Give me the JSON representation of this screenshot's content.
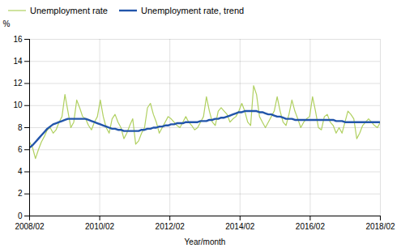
{
  "chart_data": {
    "type": "line",
    "xlabel": "Year/month",
    "ylabel": "%",
    "x": [
      2008.0833,
      2008.1674,
      2008.2514,
      2008.3354,
      2008.4195,
      2008.5035,
      2008.5875,
      2008.6716,
      2008.7556,
      2008.8396,
      2008.9237,
      2009.0077,
      2009.0917,
      2009.1758,
      2009.2598,
      2009.3438,
      2009.4279,
      2009.5119,
      2009.5959,
      2009.68,
      2009.764,
      2009.848,
      2009.9321,
      2010.0161,
      2010.1001,
      2010.1842,
      2010.2682,
      2010.3522,
      2010.4363,
      2010.5203,
      2010.6043,
      2010.6884,
      2010.7724,
      2010.8564,
      2010.9405,
      2011.0245,
      2011.1085,
      2011.1926,
      2011.2766,
      2011.3606,
      2011.4447,
      2011.5287,
      2011.6127,
      2011.6968,
      2011.7808,
      2011.8648,
      2011.9489,
      2012.0329,
      2012.1169,
      2012.201,
      2012.285,
      2012.369,
      2012.4531,
      2012.5371,
      2012.6211,
      2012.7052,
      2012.7892,
      2012.8732,
      2012.9573,
      2013.0413,
      2013.1254,
      2013.2094,
      2013.2934,
      2013.3775,
      2013.4615,
      2013.5455,
      2013.6296,
      2013.7136,
      2013.7976,
      2013.8817,
      2013.9657,
      2014.0497,
      2014.1338,
      2014.2178,
      2014.3018,
      2014.3859,
      2014.4699,
      2014.5539,
      2014.638,
      2014.722,
      2014.806,
      2014.8901,
      2014.9741,
      2015.0581,
      2015.1422,
      2015.2262,
      2015.3102,
      2015.3943,
      2015.4783,
      2015.5623,
      2015.6464,
      2015.7304,
      2015.8144,
      2015.8985,
      2015.9825,
      2016.0665,
      2016.1506,
      2016.2346,
      2016.3186,
      2016.4027,
      2016.4867,
      2016.5707,
      2016.6548,
      2016.7388,
      2016.8228,
      2016.9069,
      2016.9909,
      2017.0749,
      2017.159,
      2017.243,
      2017.327,
      2017.4111,
      2017.4951,
      2017.5791,
      2017.6632,
      2017.7472,
      2017.8312,
      2017.9153,
      2017.9993,
      2018.0833
    ],
    "series": [
      {
        "name": "Unemployment rate",
        "color": "#b0d060",
        "values": [
          6.7,
          6.2,
          5.2,
          6.0,
          6.7,
          7.2,
          7.8,
          8.0,
          7.5,
          7.8,
          8.5,
          9.0,
          11.0,
          9.5,
          8.0,
          8.5,
          10.5,
          9.8,
          9.0,
          8.8,
          8.2,
          7.8,
          8.5,
          9.0,
          10.5,
          9.0,
          8.0,
          7.5,
          8.8,
          9.2,
          8.5,
          8.0,
          7.0,
          7.5,
          8.2,
          8.8,
          6.5,
          6.8,
          7.5,
          8.0,
          9.8,
          10.2,
          9.2,
          8.5,
          7.5,
          8.0,
          8.5,
          9.0,
          8.8,
          8.5,
          8.2,
          8.0,
          8.5,
          9.0,
          8.5,
          8.2,
          7.8,
          8.0,
          8.5,
          9.0,
          10.8,
          9.5,
          8.5,
          8.2,
          9.5,
          9.8,
          9.5,
          9.2,
          8.5,
          8.8,
          9.0,
          9.5,
          10.2,
          9.5,
          8.5,
          8.2,
          11.8,
          11.0,
          9.0,
          8.5,
          8.0,
          8.5,
          9.0,
          9.5,
          10.8,
          9.5,
          8.5,
          8.2,
          9.2,
          10.5,
          9.5,
          8.8,
          8.0,
          8.5,
          8.8,
          9.0,
          10.8,
          9.5,
          8.0,
          7.8,
          9.0,
          9.2,
          8.5,
          8.2,
          7.5,
          8.0,
          7.5,
          8.5,
          9.5,
          9.2,
          8.8,
          7.0,
          7.5,
          8.2,
          8.5,
          8.8,
          8.5,
          8.2,
          8.0,
          8.5
        ]
      },
      {
        "name": "Unemployment rate, trend",
        "color": "#2255aa",
        "values": [
          6.2,
          6.4,
          6.7,
          7.0,
          7.3,
          7.6,
          7.9,
          8.1,
          8.3,
          8.4,
          8.5,
          8.6,
          8.7,
          8.8,
          8.8,
          8.8,
          8.8,
          8.8,
          8.8,
          8.8,
          8.7,
          8.6,
          8.5,
          8.4,
          8.3,
          8.2,
          8.1,
          8.0,
          7.9,
          7.9,
          7.8,
          7.8,
          7.7,
          7.7,
          7.7,
          7.7,
          7.7,
          7.7,
          7.8,
          7.8,
          7.9,
          7.9,
          8.0,
          8.0,
          8.1,
          8.1,
          8.2,
          8.2,
          8.3,
          8.3,
          8.4,
          8.4,
          8.4,
          8.5,
          8.5,
          8.5,
          8.5,
          8.5,
          8.6,
          8.6,
          8.6,
          8.7,
          8.7,
          8.8,
          8.8,
          8.9,
          8.9,
          9.0,
          9.1,
          9.2,
          9.3,
          9.4,
          9.4,
          9.5,
          9.5,
          9.5,
          9.5,
          9.5,
          9.4,
          9.4,
          9.3,
          9.2,
          9.2,
          9.1,
          9.0,
          9.0,
          8.9,
          8.8,
          8.8,
          8.8,
          8.7,
          8.7,
          8.7,
          8.7,
          8.7,
          8.7,
          8.7,
          8.7,
          8.7,
          8.7,
          8.7,
          8.7,
          8.7,
          8.7,
          8.6,
          8.6,
          8.6,
          8.5,
          8.5,
          8.5,
          8.5,
          8.5,
          8.5,
          8.5,
          8.5,
          8.5,
          8.5,
          8.5,
          8.5,
          8.5
        ]
      }
    ],
    "xlim": [
      2008.0833,
      2018.0833
    ],
    "xticks": [
      {
        "value": 2008.0833,
        "label": "2008/02"
      },
      {
        "value": 2010.0833,
        "label": "2010/02"
      },
      {
        "value": 2012.0833,
        "label": "2012/02"
      },
      {
        "value": 2014.0833,
        "label": "2014/02"
      },
      {
        "value": 2016.0833,
        "label": "2016/02"
      },
      {
        "value": 2018.0833,
        "label": "2018/02"
      }
    ],
    "ylim": [
      0,
      16
    ],
    "yticks": [
      0,
      2,
      4,
      6,
      8,
      10,
      12,
      14,
      16
    ],
    "grid": true,
    "legend": "upper left"
  }
}
